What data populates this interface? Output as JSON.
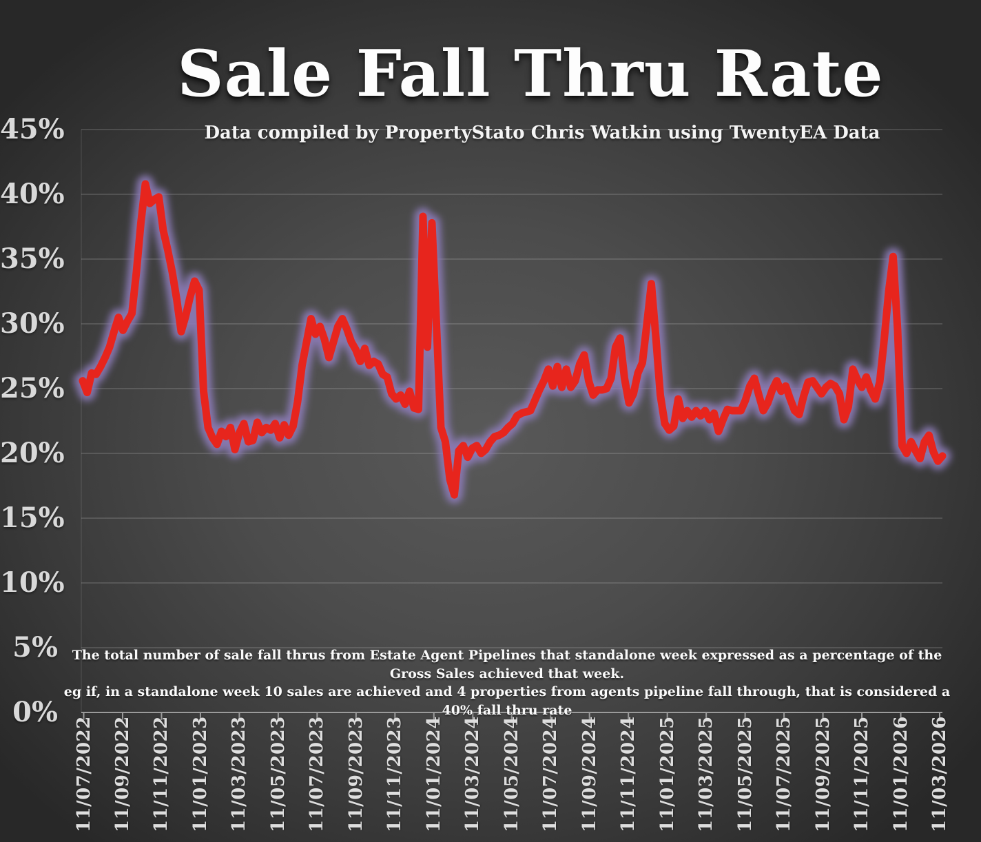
{
  "title": "Sale Fall Thru Rate",
  "subtitle": "Data compiled by PropertyStato Chris Watkin using TwentyEA Data",
  "annotation": {
    "line1": "The total number of sale fall thrus from Estate Agent Pipelines that standalone week expressed as a percentage of the Gross Sales achieved that week.",
    "line2": "eg if, in a standalone week 10 sales are achieved and 4 properties from agents pipeline fall through, that is considered a 40%  fall thru rate"
  },
  "chart_data": {
    "type": "line",
    "title": "Sale Fall Thru Rate",
    "frequency": "weekly",
    "x_range": [
      "11/07/2022",
      "11/03/2026"
    ],
    "x_tick_labels": [
      "11/07/2022",
      "11/09/2022",
      "11/11/2022",
      "11/01/2023",
      "11/03/2023",
      "11/05/2023",
      "11/07/2023",
      "11/09/2023",
      "11/11/2023",
      "11/01/2024",
      "11/03/2024",
      "11/05/2024",
      "11/07/2024",
      "11/09/2024",
      "11/11/2024",
      "11/01/2025",
      "11/03/2025",
      "11/05/2025",
      "11/07/2025",
      "11/09/2025",
      "11/11/2025",
      "11/01/2026",
      "11/03/2026"
    ],
    "y_tick_labels": [
      "45%",
      "40%",
      "35%",
      "30%",
      "25%",
      "20%",
      "15%",
      "10%",
      "5%",
      "0%"
    ],
    "ylim": [
      0,
      45
    ],
    "y_step": 5,
    "grid": true,
    "gridline_color": "rgba(255,255,255,0.22)",
    "axis_color": "#9b9b9b",
    "series": [
      {
        "name": "Sale fall thru rate (% of gross sales that week)",
        "unit": "%",
        "color": "#e7251d",
        "glow_color": "#8d7cb8",
        "values": [
          25.6,
          24.7,
          26.2,
          26.1,
          26.7,
          27.4,
          28.2,
          29.4,
          30.5,
          29.5,
          30.2,
          30.8,
          34.0,
          37.8,
          40.8,
          39.3,
          39.6,
          39.8,
          37.2,
          35.7,
          34.0,
          31.9,
          29.4,
          30.6,
          32.1,
          33.3,
          32.6,
          24.8,
          22.0,
          21.2,
          20.7,
          21.7,
          21.3,
          22.0,
          20.3,
          21.6,
          22.3,
          20.9,
          21.0,
          22.4,
          21.6,
          22.0,
          21.8,
          22.3,
          21.2,
          22.2,
          21.4,
          22.1,
          24.0,
          26.8,
          28.6,
          30.4,
          29.2,
          29.8,
          28.8,
          27.4,
          28.6,
          29.8,
          30.4,
          29.6,
          28.6,
          28.0,
          27.1,
          28.1,
          26.8,
          27.1,
          26.9,
          26.1,
          25.9,
          24.6,
          24.2,
          24.5,
          23.8,
          24.8,
          23.5,
          23.4,
          38.3,
          28.2,
          37.8,
          30.0,
          22.0,
          20.9,
          18.0,
          16.8,
          20.2,
          20.6,
          19.7,
          20.4,
          20.6,
          20.0,
          20.3,
          20.9,
          21.3,
          21.4,
          21.6,
          22.0,
          22.3,
          22.9,
          23.1,
          23.2,
          23.3,
          24.1,
          24.9,
          25.6,
          26.5,
          25.2,
          26.7,
          25.1,
          26.5,
          25.1,
          25.6,
          26.9,
          27.6,
          25.6,
          24.5,
          24.9,
          24.9,
          25.0,
          25.8,
          28.2,
          28.9,
          25.8,
          23.9,
          24.6,
          26.2,
          27.0,
          30.0,
          33.1,
          29.0,
          24.5,
          22.3,
          21.8,
          22.1,
          24.2,
          22.7,
          23.3,
          22.8,
          23.3,
          22.9,
          23.3,
          22.6,
          23.1,
          21.7,
          22.6,
          23.4,
          23.3,
          23.3,
          23.3,
          24.1,
          25.2,
          25.8,
          24.5,
          23.3,
          23.9,
          24.9,
          25.6,
          24.8,
          25.2,
          24.2,
          23.3,
          23.0,
          24.4,
          25.5,
          25.6,
          25.1,
          24.6,
          25.1,
          25.4,
          25.2,
          24.6,
          22.6,
          23.6,
          26.5,
          25.7,
          25.1,
          25.9,
          24.9,
          24.2,
          25.5,
          28.8,
          32.5,
          35.2,
          29.5,
          20.6,
          20.0,
          20.9,
          20.2,
          19.6,
          20.9,
          21.4,
          20.1,
          19.4,
          19.8
        ]
      }
    ]
  }
}
